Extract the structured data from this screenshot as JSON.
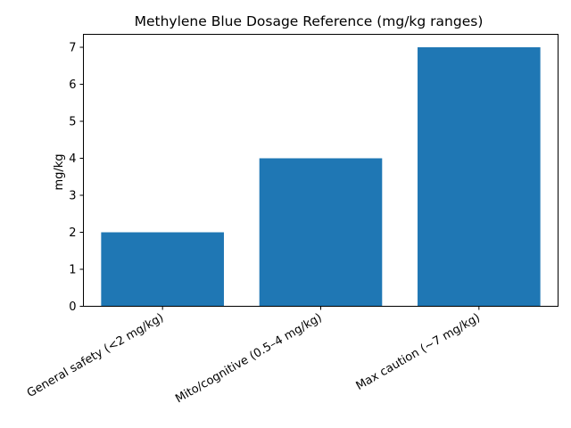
{
  "chart_data": {
    "type": "bar",
    "title": "Methylene Blue Dosage Reference (mg/kg ranges)",
    "xlabel": "",
    "ylabel": "mg/kg",
    "categories": [
      "General safety (<2 mg/kg)",
      "Mito/cognitive (0.5–4 mg/kg)",
      "Max caution (~7 mg/kg)"
    ],
    "values": [
      2,
      4,
      7
    ],
    "ylim": [
      0,
      7.35
    ],
    "yticks": [
      0,
      1,
      2,
      3,
      4,
      5,
      6,
      7
    ],
    "bar_color": "#1f77b4",
    "grid": false,
    "legend": "none"
  }
}
